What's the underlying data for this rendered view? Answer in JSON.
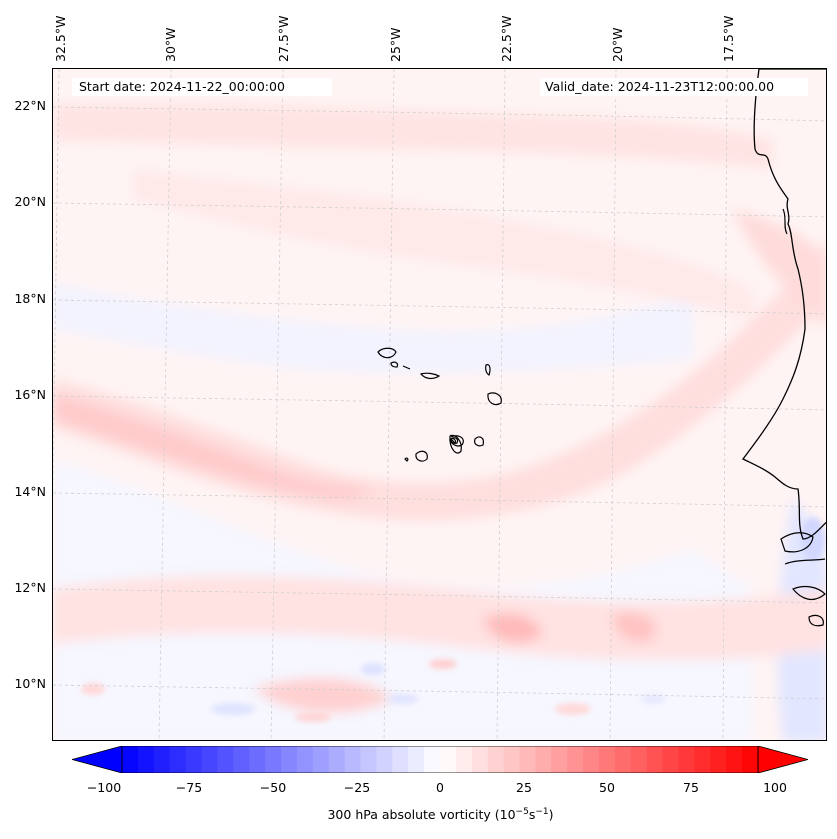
{
  "map": {
    "start_date": "Start date: 2024-11-22_00:00:00",
    "valid_date": "Valid_date: 2024-11-23T12:00:00.00",
    "lon_labels": [
      "32.5°W",
      "30°W",
      "27.5°W",
      "25°W",
      "22.5°W",
      "20°W",
      "17.5°W"
    ],
    "lat_labels": [
      "22°N",
      "20°N",
      "18°N",
      "16°N",
      "14°N",
      "12°N",
      "10°N"
    ],
    "colorbar": {
      "ticks": [
        "−100",
        "−75",
        "−50",
        "−25",
        "0",
        "25",
        "50",
        "75",
        "100"
      ],
      "label_main": "300 hPa absolute vorticity (10",
      "label_exp1": "−5",
      "label_mid": "s",
      "label_exp2": "−1",
      "label_end": ")",
      "min_color": "#0000ff",
      "mid_color": "#ffffff",
      "max_color": "#ff0000"
    },
    "colors": {
      "coast": "#000000",
      "grid": "#c8c8c8",
      "light_red": "#ffe6e6",
      "red": "#ffcccc",
      "light_blue": "#eef0ff",
      "blue": "#d6daff"
    }
  }
}
